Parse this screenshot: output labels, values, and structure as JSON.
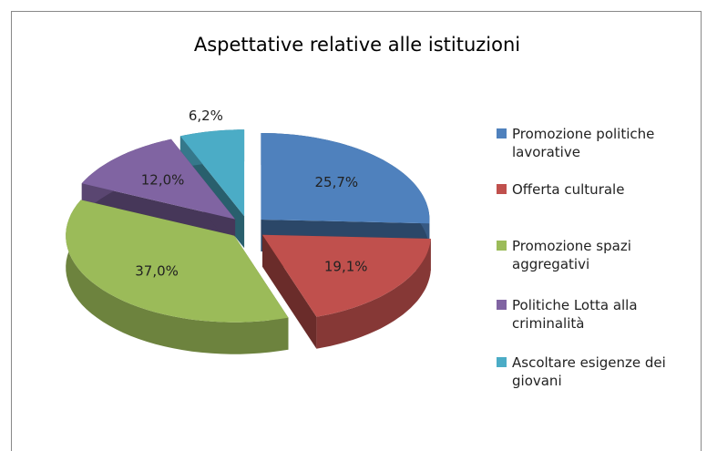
{
  "chart_data": {
    "type": "pie3d",
    "title": "Aspettative relative alle istituzioni",
    "categories": [
      "Promozione politiche lavorative",
      "Offerta culturale",
      "Promozione spazi aggregativi",
      "Politiche Lotta alla criminalità",
      "Ascoltare esigenze dei giovani"
    ],
    "values": [
      25.7,
      19.1,
      37.0,
      12.0,
      6.2
    ],
    "value_labels": [
      "25,7%",
      "19,1%",
      "37,0%",
      "12,0%",
      "6,2%"
    ],
    "colors": [
      "#4f81bd",
      "#c0504d",
      "#9bbb59",
      "#8064a2",
      "#4bacc6"
    ],
    "legend": "right"
  }
}
